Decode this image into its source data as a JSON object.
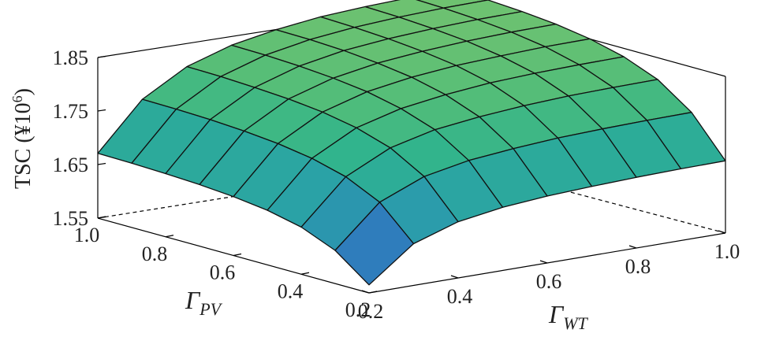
{
  "chart_data": {
    "type": "surface",
    "title": "",
    "zlabel_main": "TSC (¥10",
    "zlabel_exp": "6",
    "zlabel_close": ")",
    "xlabel_sym": "Γ",
    "xlabel_sub": "WT",
    "ylabel_sym": "Γ",
    "ylabel_sub": "PV",
    "x": [
      0.2,
      0.3,
      0.4,
      0.5,
      0.6,
      0.7,
      0.8,
      0.9,
      1.0
    ],
    "y": [
      0.2,
      0.3,
      0.4,
      0.5,
      0.6,
      0.7,
      0.8,
      0.9,
      1.0
    ],
    "z": [
      [
        1.565,
        1.628,
        1.655,
        1.668,
        1.675,
        1.679,
        1.682,
        1.684,
        1.685
      ],
      [
        1.612,
        1.688,
        1.722,
        1.738,
        1.746,
        1.752,
        1.755,
        1.757,
        1.758
      ],
      [
        1.638,
        1.718,
        1.758,
        1.778,
        1.788,
        1.795,
        1.799,
        1.801,
        1.802
      ],
      [
        1.652,
        1.735,
        1.778,
        1.8,
        1.812,
        1.82,
        1.824,
        1.826,
        1.827
      ],
      [
        1.66,
        1.745,
        1.79,
        1.814,
        1.827,
        1.835,
        1.839,
        1.842,
        1.843
      ],
      [
        1.665,
        1.751,
        1.797,
        1.822,
        1.836,
        1.844,
        1.849,
        1.852,
        1.853
      ],
      [
        1.668,
        1.755,
        1.801,
        1.827,
        1.842,
        1.85,
        1.855,
        1.858,
        1.859
      ],
      [
        1.67,
        1.757,
        1.804,
        1.83,
        1.845,
        1.854,
        1.859,
        1.862,
        1.863
      ],
      [
        1.671,
        1.758,
        1.805,
        1.831,
        1.846,
        1.856,
        1.861,
        1.864,
        1.865
      ]
    ],
    "z_ticks": [
      "1.55",
      "1.65",
      "1.75",
      "1.85"
    ],
    "z_tick_values": [
      1.55,
      1.65,
      1.75,
      1.85
    ],
    "x_ticks": [
      "0.2",
      "0.4",
      "0.6",
      "0.8",
      "1.0"
    ],
    "x_tick_values": [
      0.2,
      0.4,
      0.6,
      0.8,
      1.0
    ],
    "y_ticks": [
      "1.0",
      "0.8",
      "0.6",
      "0.4",
      "0.2"
    ],
    "y_tick_values": [
      1.0,
      0.8,
      0.6,
      0.4,
      0.2
    ],
    "zlim": [
      1.55,
      1.9
    ],
    "colormap": [
      "#2c4fa5",
      "#2f7cbd",
      "#2aa1a8",
      "#2eb38e",
      "#52bd79",
      "#6fc270"
    ]
  }
}
